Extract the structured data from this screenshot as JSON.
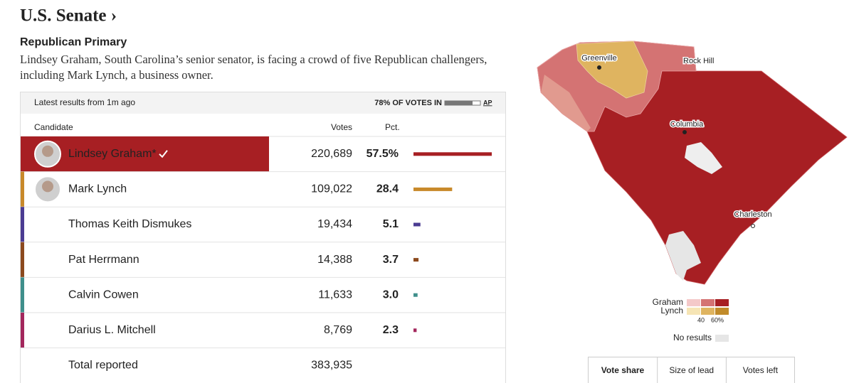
{
  "header": {
    "title": "U.S. Senate ›",
    "subtitle": "Republican Primary",
    "description": "Lindsey Graham, South Carolina’s senior senator, is facing a crowd of five Republican challengers, including Mark Lynch, a business owner."
  },
  "table": {
    "status": "Latest results from 1m ago",
    "votes_in": "78% OF VOTES IN",
    "source": "AP",
    "columns": [
      "Candidate",
      "Votes",
      "Pct."
    ],
    "rows": [
      {
        "name": "Lindsey Graham*",
        "votes": "220,689",
        "pct": {
          "value": 57.5,
          "label": "57.5%"
        },
        "color": "#a71f23"
      },
      {
        "name": "Mark Lynch",
        "votes": "109,022",
        "pct": 28.4,
        "color": "#c8892a"
      },
      {
        "name": "Thomas Keith Dismukes",
        "votes": "19,434",
        "pct": 5.1,
        "color": "#4b3c92"
      },
      {
        "name": "Pat Herrmann",
        "votes": "14,388",
        "pct": 3.7,
        "color": "#8c4a1e"
      },
      {
        "name": "Calvin Cowen",
        "votes": "11,633",
        "pct": {
          "value": 3,
          "label": "3.0"
        },
        "color": "#3f8f8b"
      },
      {
        "name": "Darius L. Mitchell",
        "votes": "8,769",
        "pct": 2.3,
        "color": "#a3275c"
      }
    ],
    "total": {
      "label": "Total reported",
      "votes": "383,935"
    }
  },
  "map": {
    "cities": [
      "Greenville",
      "Rock Hill",
      "Columbia",
      "Charleston"
    ],
    "legend": {
      "series": [
        {
          "name": "Graham",
          "colors": [
            "#f4c9c9",
            "#d47373",
            "#a71f23"
          ]
        },
        {
          "name": "Lynch",
          "colors": [
            "#f6e5b5",
            "#dfb460",
            "#c18b2a"
          ]
        }
      ],
      "ticks": [
        "40",
        "60%"
      ],
      "no_results": "No results"
    },
    "tabs": [
      "Vote share",
      "Size of lead",
      "Votes left"
    ]
  }
}
